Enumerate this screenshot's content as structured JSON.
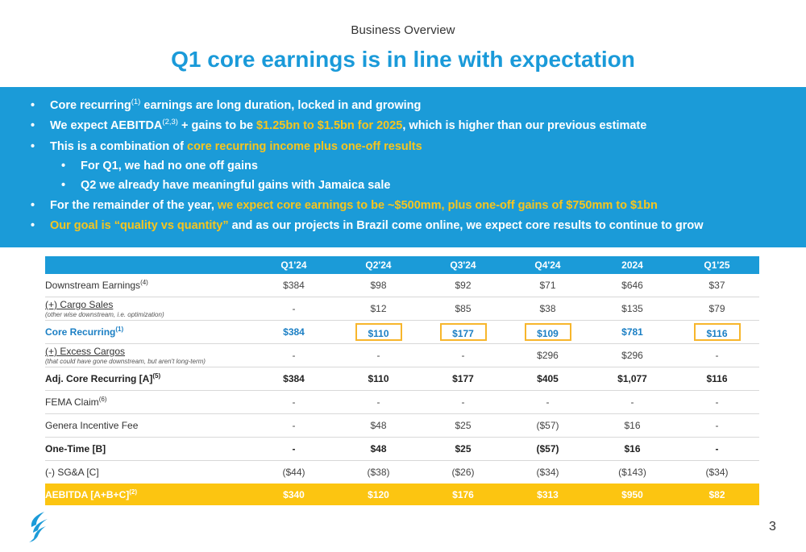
{
  "header": {
    "kicker": "Business Overview",
    "title": "Q1 core earnings is in line with expectation"
  },
  "bullets": {
    "b1": {
      "pre": "Core recurring",
      "sup": "(1)",
      "post": " earnings are long duration, locked in and growing"
    },
    "b2": {
      "pre": "We expect AEBITDA",
      "sup": "(2,3)",
      "mid": " + gains to be ",
      "hl": "$1.25bn to $1.5bn for 2025",
      "post": ", which is higher than our previous estimate"
    },
    "b3": {
      "pre": "This is a combination of ",
      "hl": "core recurring income plus one-off results"
    },
    "b3a": "For Q1, we had no one off gains",
    "b3b": "Q2 we already have meaningful gains with Jamaica sale",
    "b4": {
      "pre": "For the remainder of the year, ",
      "hl": "we expect core earnings to be ~$500mm, plus one-off gains of $750mm to $1bn"
    },
    "b5": {
      "hl": "Our goal is “quality vs quantity”",
      "post": " and as our projects in Brazil come online, we expect core results to continue to grow"
    }
  },
  "table": {
    "columns": [
      "Q1'24",
      "Q2'24",
      "Q3'24",
      "Q4'24",
      "2024",
      "Q1'25"
    ],
    "rows": [
      {
        "label": "Downstream Earnings",
        "sup": "(4)",
        "values": [
          "$384",
          "$98",
          "$92",
          "$71",
          "$646",
          "$37"
        ]
      },
      {
        "label": "(+) Cargo Sales",
        "note": "(other wise downstream, i.e. optimization)",
        "values": [
          "-",
          "$12",
          "$85",
          "$38",
          "$135",
          "$79"
        ]
      },
      {
        "label": "Core Recurring",
        "sup": "(1)",
        "values": [
          "$384",
          "$110",
          "$177",
          "$109",
          "$781",
          "$116"
        ]
      },
      {
        "label": "(+) Excess Cargos",
        "note": "(that could have gone downstream, but aren't long-term)",
        "values": [
          "-",
          "-",
          "-",
          "$296",
          "$296",
          "-"
        ]
      },
      {
        "label": "Adj. Core Recurring [A]",
        "sup": "(5)",
        "values": [
          "$384",
          "$110",
          "$177",
          "$405",
          "$1,077",
          "$116"
        ]
      },
      {
        "label": "FEMA Claim",
        "sup": "(6)",
        "values": [
          "-",
          "-",
          "-",
          "-",
          "-",
          "-"
        ]
      },
      {
        "label": "Genera Incentive Fee",
        "values": [
          "-",
          "$48",
          "$25",
          "($57)",
          "$16",
          "-"
        ]
      },
      {
        "label": "One-Time [B]",
        "values": [
          "-",
          "$48",
          "$25",
          "($57)",
          "$16",
          "-"
        ]
      },
      {
        "label": "(-) SG&A [C]",
        "values": [
          "($44)",
          "($38)",
          "($26)",
          "($34)",
          "($143)",
          "($34)"
        ]
      },
      {
        "label": "AEBITDA [A+B+C]",
        "sup": "(2)",
        "values": [
          "$340",
          "$120",
          "$176",
          "$313",
          "$950",
          "$82"
        ]
      }
    ]
  },
  "footer": {
    "page_number": "3",
    "logo_icon": "flame-logo-icon"
  },
  "colors": {
    "accent_blue": "#1b9bd8",
    "highlight_yellow": "#f7c51e",
    "total_row": "#fcc511"
  }
}
